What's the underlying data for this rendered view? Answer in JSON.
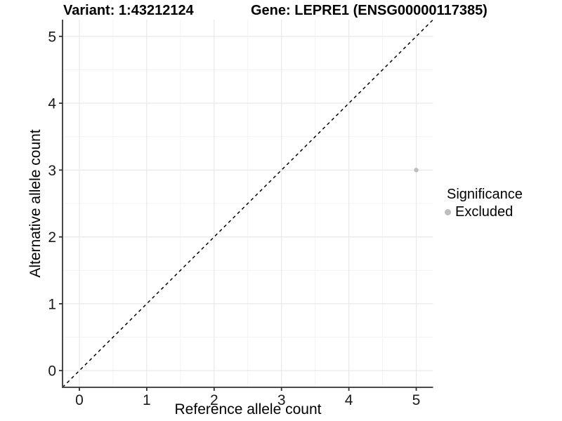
{
  "chart_data": {
    "type": "scatter",
    "title_left": "Variant: 1:43212124",
    "title_right": "Gene: LEPRE1 (ENSG00000117385)",
    "xlabel": "Reference allele count",
    "ylabel": "Alternative allele count",
    "xlim": [
      -0.25,
      5.25
    ],
    "ylim": [
      -0.25,
      5.25
    ],
    "x_ticks": [
      0,
      1,
      2,
      3,
      4,
      5
    ],
    "y_ticks": [
      0,
      1,
      2,
      3,
      4,
      5
    ],
    "grid": {
      "major": true,
      "minor": true
    },
    "series": [
      {
        "name": "Excluded",
        "color": "#bebebe",
        "point_radius": 3.2,
        "points": [
          {
            "x": 5,
            "y": 3
          }
        ]
      }
    ],
    "reference_line": {
      "kind": "identity y=x",
      "style": "dashed",
      "color": "#000000"
    },
    "legend": {
      "title": "Significance",
      "position": "right",
      "items": [
        {
          "label": "Excluded",
          "color": "#bebebe"
        }
      ]
    }
  },
  "colors": {
    "background": "#ffffff",
    "axis_line": "#4a4a4a",
    "tick_mark": "#333333",
    "tick_text": "#1a1a1a",
    "grid_major": "#e8e8e8",
    "grid_minor": "#f3f3f3"
  }
}
